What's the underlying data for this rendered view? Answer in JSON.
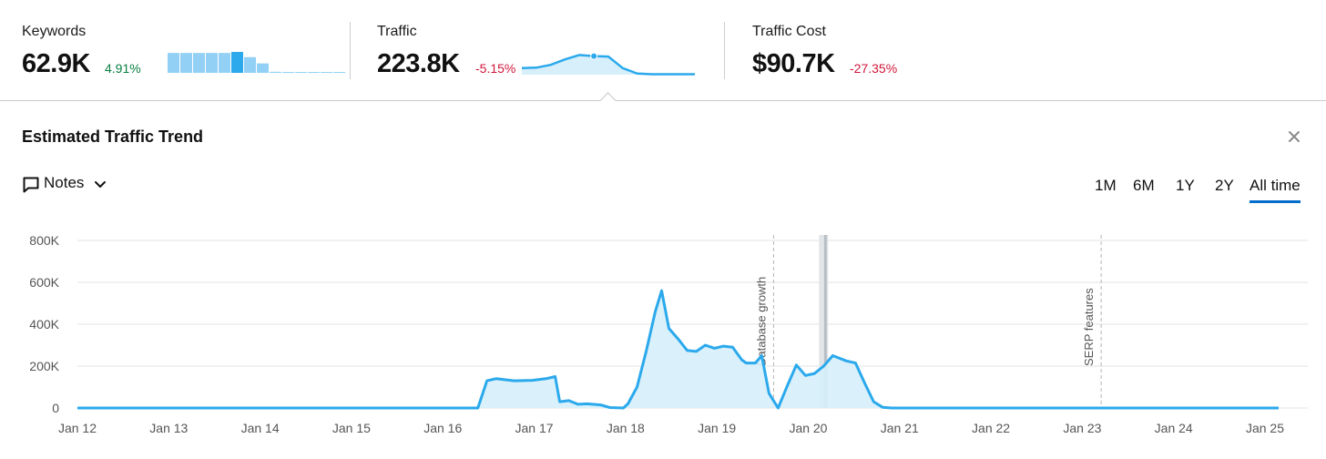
{
  "metrics": [
    {
      "label": "Keywords",
      "value": "62.9K",
      "change": "4.91%",
      "direction": "up"
    },
    {
      "label": "Traffic",
      "value": "223.8K",
      "change": "-5.15%",
      "direction": "down"
    },
    {
      "label": "Traffic Cost",
      "value": "$90.7K",
      "change": "-27.35%",
      "direction": "down"
    }
  ],
  "keywords_sparkline": [
    0.95,
    0.95,
    0.95,
    0.95,
    0.95,
    1.0,
    0.75,
    0.45,
    0.05,
    0.02,
    0.02,
    0.02,
    0.02,
    0.02
  ],
  "traffic_sparkline": [
    0.3,
    0.32,
    0.45,
    0.7,
    0.9,
    0.85,
    0.83,
    0.3,
    0.05,
    0.02,
    0.02,
    0.02,
    0.02
  ],
  "panel": {
    "title": "Estimated Traffic Trend"
  },
  "notes": {
    "label": "Notes"
  },
  "range_tabs": [
    {
      "label": "1M",
      "active": false
    },
    {
      "label": "6M",
      "active": false
    },
    {
      "label": "1Y",
      "active": false
    },
    {
      "label": "2Y",
      "active": false
    },
    {
      "label": "All time",
      "active": true
    }
  ],
  "colors": {
    "line": "#2ba9ec",
    "fill": "#d6effb",
    "positive": "#0b8043",
    "negative": "#d1173b",
    "tab_active": "#006dca"
  },
  "icons": {
    "close": "close-icon",
    "notes": "comment-icon",
    "chevron": "chevron-down-icon"
  },
  "chart_data": {
    "type": "area",
    "x_ticks": [
      "Jan 12",
      "Jan 13",
      "Jan 14",
      "Jan 15",
      "Jan 16",
      "Jan 17",
      "Jan 18",
      "Jan 19",
      "Jan 20",
      "Jan 21",
      "Jan 22",
      "Jan 23",
      "Jan 24",
      "Jan 25"
    ],
    "y_ticks": [
      "0",
      "200K",
      "400K",
      "600K",
      "800K"
    ],
    "ylim": [
      0,
      800000
    ],
    "xlim": [
      2012.0,
      2025.3
    ],
    "grid": true,
    "series": [
      {
        "points": [
          [
            2012.0,
            0
          ],
          [
            2016.4,
            0
          ],
          [
            2016.5,
            130000
          ],
          [
            2016.6,
            140000
          ],
          [
            2016.8,
            130000
          ],
          [
            2017.0,
            132000
          ],
          [
            2017.15,
            140000
          ],
          [
            2017.25,
            150000
          ],
          [
            2017.3,
            30000
          ],
          [
            2017.4,
            35000
          ],
          [
            2017.5,
            18000
          ],
          [
            2017.6,
            20000
          ],
          [
            2017.75,
            15000
          ],
          [
            2017.85,
            2000
          ],
          [
            2018.0,
            0
          ],
          [
            2018.05,
            20000
          ],
          [
            2018.15,
            100000
          ],
          [
            2018.25,
            270000
          ],
          [
            2018.35,
            460000
          ],
          [
            2018.42,
            560000
          ],
          [
            2018.5,
            380000
          ],
          [
            2018.6,
            330000
          ],
          [
            2018.7,
            275000
          ],
          [
            2018.8,
            270000
          ],
          [
            2018.9,
            300000
          ],
          [
            2019.0,
            285000
          ],
          [
            2019.1,
            295000
          ],
          [
            2019.2,
            290000
          ],
          [
            2019.3,
            230000
          ],
          [
            2019.35,
            215000
          ],
          [
            2019.45,
            215000
          ],
          [
            2019.52,
            250000
          ],
          [
            2019.6,
            70000
          ],
          [
            2019.7,
            0
          ],
          [
            2019.8,
            105000
          ],
          [
            2019.9,
            205000
          ],
          [
            2020.0,
            155000
          ],
          [
            2020.1,
            165000
          ],
          [
            2020.2,
            200000
          ],
          [
            2020.3,
            250000
          ],
          [
            2020.45,
            225000
          ],
          [
            2020.55,
            215000
          ],
          [
            2020.65,
            120000
          ],
          [
            2020.75,
            30000
          ],
          [
            2020.85,
            3000
          ],
          [
            2020.95,
            0
          ],
          [
            2025.2,
            0
          ]
        ]
      }
    ],
    "annotations": [
      {
        "x": 2019.65,
        "label": "Database growth"
      },
      {
        "x": 2023.25,
        "label": "SERP features"
      }
    ],
    "highlight": [
      2020.15,
      2020.25
    ]
  }
}
